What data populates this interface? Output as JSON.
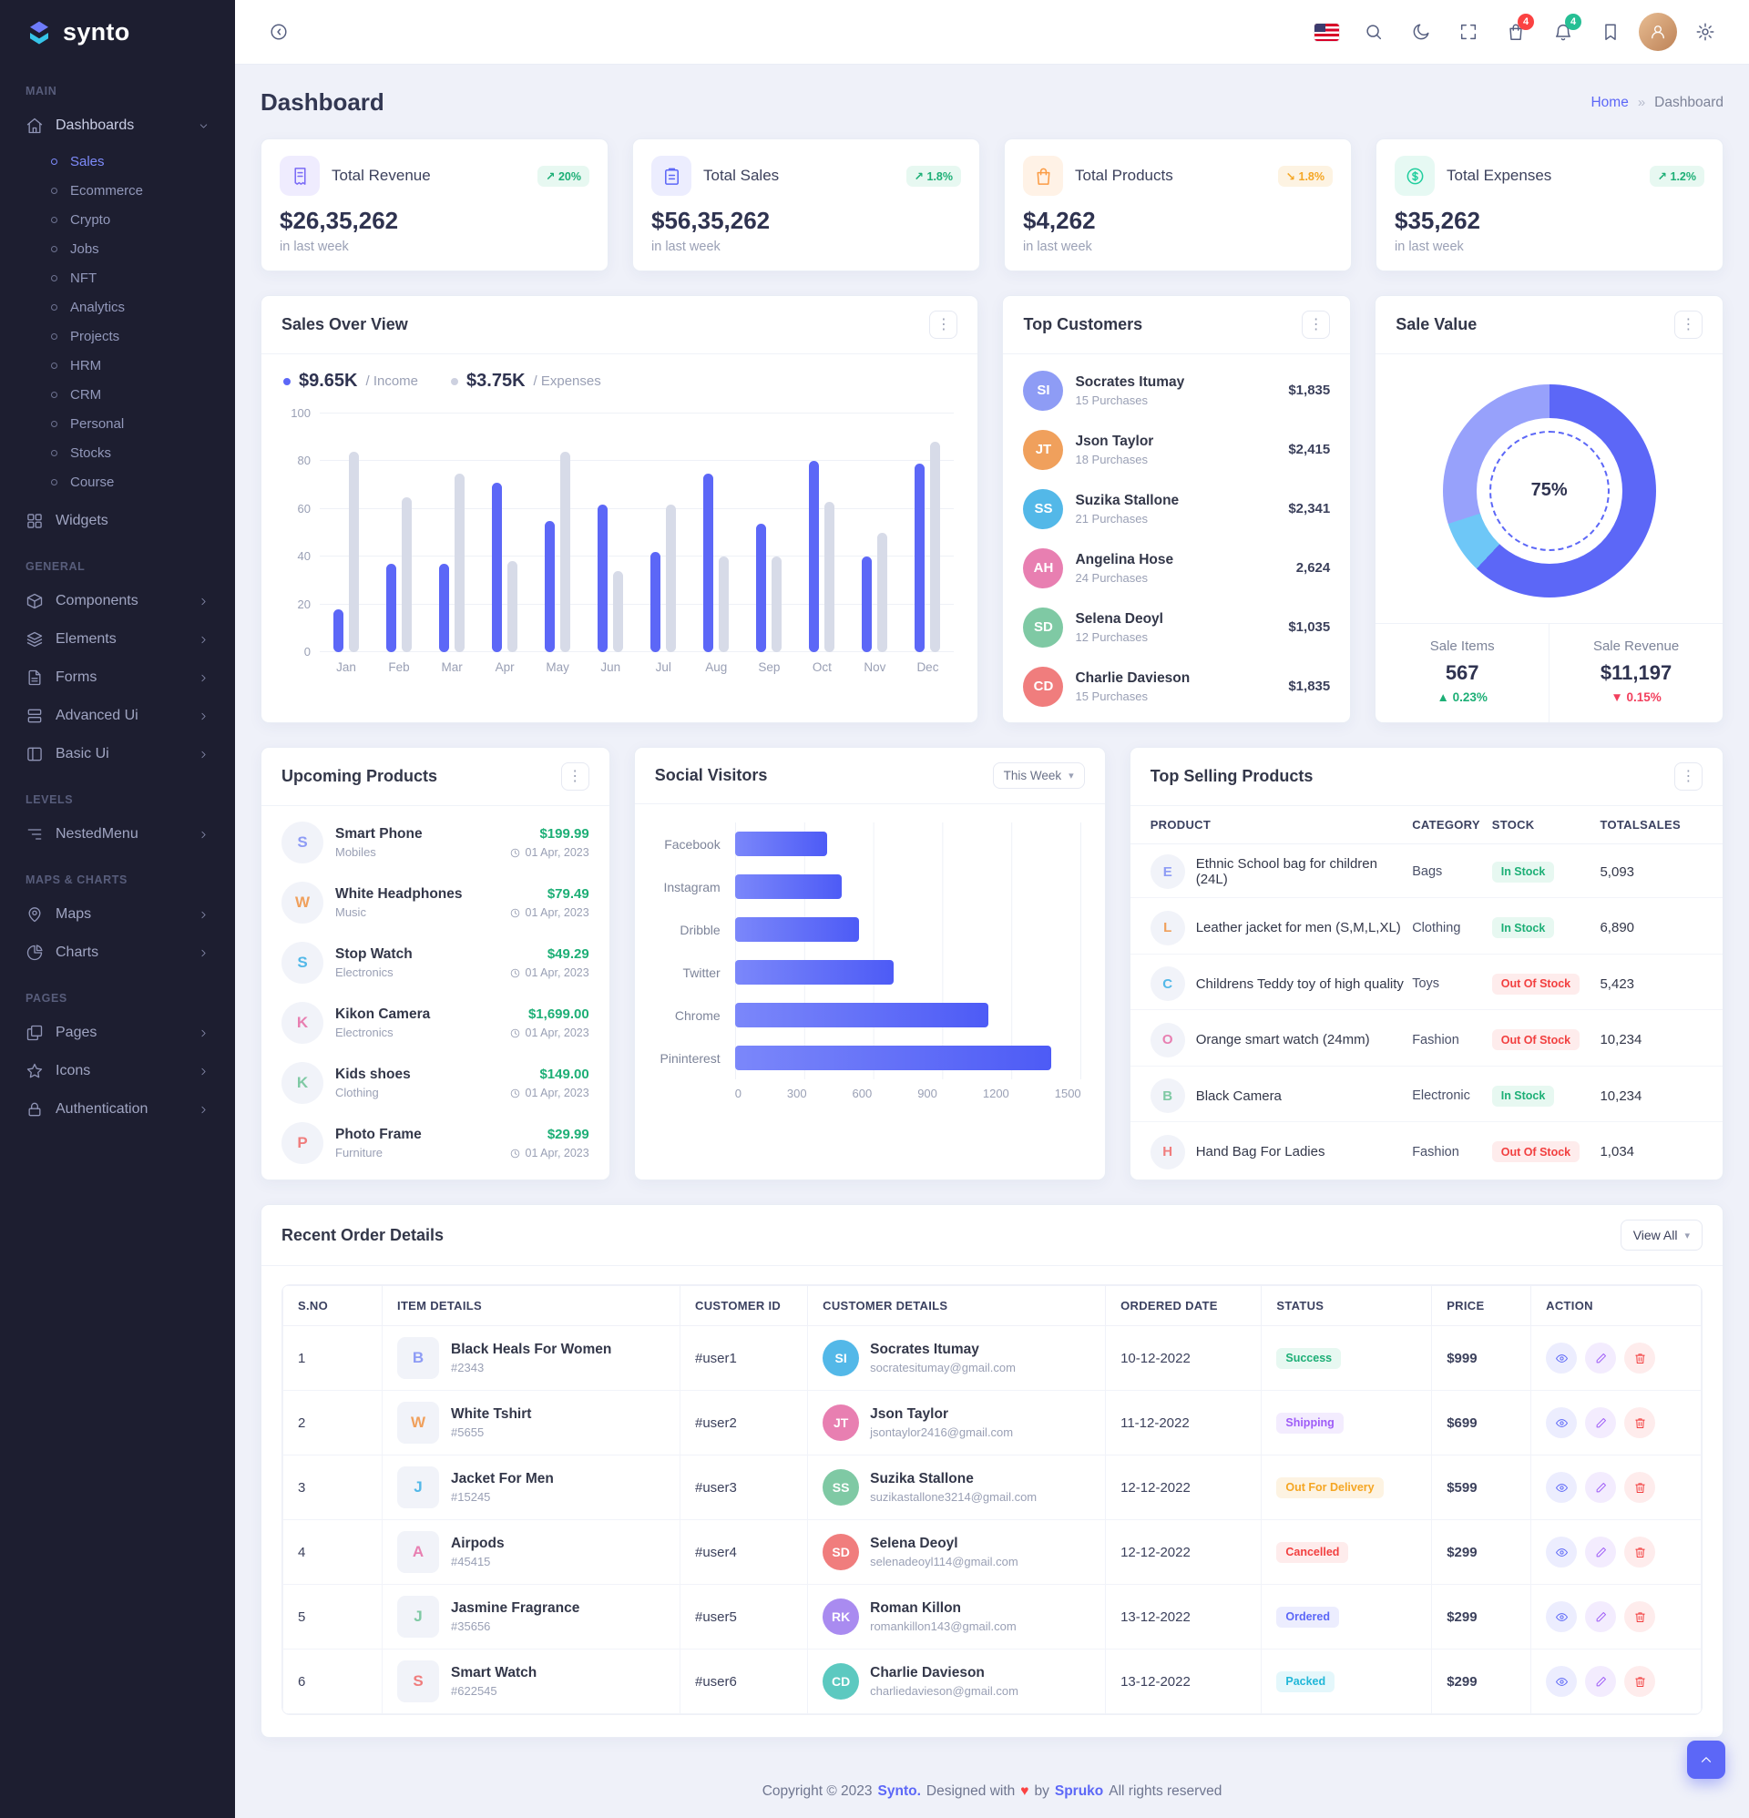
{
  "brand": {
    "name": "synto"
  },
  "colors": {
    "primary": "#5c67f7",
    "primary_bg": "#ecedfe",
    "success": "#1daf76",
    "success_bg": "#e7f8f1",
    "danger": "#f23f3f",
    "danger_bg": "#feecec",
    "warning": "#f5a623",
    "warning_bg": "#fdf3e2",
    "purple": "#9e5cf7",
    "purple_bg": "#f3ecfe",
    "info": "#21b7d8",
    "info_bg": "#e4f7fb",
    "income_bar": "#5c67f7",
    "expenses_bar": "#d7dbe8"
  },
  "icons": {
    "ellipsis": "⋮",
    "caret_down": "▾",
    "breadcrumb_separator": "»",
    "trend_up": "↗",
    "trend_down": "↘",
    "change_up": "▲",
    "change_down": "▼"
  },
  "sidebar": {
    "sections": [
      {
        "label": "MAIN",
        "items": [
          {
            "label": "Dashboards",
            "icon": "home-icon",
            "expanded": true,
            "children": [
              "Sales",
              "Ecommerce",
              "Crypto",
              "Jobs",
              "NFT",
              "Analytics",
              "Projects",
              "HRM",
              "CRM",
              "Personal",
              "Stocks",
              "Course"
            ],
            "active_child": "Sales"
          },
          {
            "label": "Widgets",
            "icon": "widgets-icon"
          }
        ]
      },
      {
        "label": "GENERAL",
        "items": [
          {
            "label": "Components",
            "icon": "components-icon",
            "chevron": true
          },
          {
            "label": "Elements",
            "icon": "elements-icon",
            "chevron": true
          },
          {
            "label": "Forms",
            "icon": "forms-icon",
            "chevron": true
          },
          {
            "label": "Advanced Ui",
            "icon": "advanced-ui-icon",
            "chevron": true
          },
          {
            "label": "Basic Ui",
            "icon": "basic-ui-icon",
            "chevron": true
          }
        ]
      },
      {
        "label": "LEVELS",
        "items": [
          {
            "label": "NestedMenu",
            "icon": "nested-menu-icon",
            "chevron": true
          }
        ]
      },
      {
        "label": "MAPS & CHARTS",
        "items": [
          {
            "label": "Maps",
            "icon": "maps-icon",
            "chevron": true
          },
          {
            "label": "Charts",
            "icon": "charts-icon",
            "chevron": true
          }
        ]
      },
      {
        "label": "PAGES",
        "items": [
          {
            "label": "Pages",
            "icon": "pages-icon",
            "chevron": true
          },
          {
            "label": "Icons",
            "icon": "icons-icon",
            "chevron": true
          },
          {
            "label": "Authentication",
            "icon": "authentication-icon",
            "chevron": true
          }
        ]
      }
    ]
  },
  "header": {
    "cart_badge": "4",
    "notification_badge": "4"
  },
  "page": {
    "title": "Dashboard",
    "breadcrumb_home": "Home",
    "breadcrumb_current": "Dashboard"
  },
  "stats": [
    {
      "title": "Total Revenue",
      "icon": "revenue-icon",
      "value": "$26,35,262",
      "note": "in last week",
      "change": "20%",
      "trend": "up",
      "accent": "#7b6cf6",
      "accent_bg": "#efecfe"
    },
    {
      "title": "Total Sales",
      "icon": "sales-icon",
      "value": "$56,35,262",
      "note": "in last week",
      "change": "1.8%",
      "trend": "up",
      "accent": "#5c67f7",
      "accent_bg": "#ecedfe"
    },
    {
      "title": "Total Products",
      "icon": "products-icon",
      "value": "$4,262",
      "note": "in last week",
      "change": "1.8%",
      "trend": "down",
      "accent": "#fb9c45",
      "accent_bg": "#fff2e6"
    },
    {
      "title": "Total Expenses",
      "icon": "expenses-icon",
      "value": "$35,262",
      "note": "in last week",
      "change": "1.2%",
      "trend": "up",
      "accent": "#21ce9e",
      "accent_bg": "#e6f9f3"
    }
  ],
  "chart_data": [
    {
      "id": "sales_over_view",
      "type": "bar",
      "title": "Sales Over View",
      "categories": [
        "Jan",
        "Feb",
        "Mar",
        "Apr",
        "May",
        "Jun",
        "Jul",
        "Aug",
        "Sep",
        "Oct",
        "Nov",
        "Dec"
      ],
      "series": [
        {
          "name": "Income",
          "total_label": "$9.65K",
          "legend_label": "/ Income",
          "color": "#5c67f7",
          "values": [
            18,
            37,
            37,
            71,
            55,
            62,
            42,
            75,
            54,
            80,
            40,
            79
          ]
        },
        {
          "name": "Expenses",
          "total_label": "$3.75K",
          "legend_label": "/ Expenses",
          "color": "#d7dbe8",
          "values": [
            84,
            65,
            75,
            38,
            84,
            34,
            62,
            40,
            40,
            63,
            50,
            88
          ]
        }
      ],
      "ylim": [
        0,
        100
      ],
      "yticks": [
        0,
        20,
        40,
        60,
        80,
        100
      ],
      "grid": true,
      "legend_position": "top-left"
    },
    {
      "id": "social_visitors",
      "type": "bar-horizontal",
      "title": "Social Visitors",
      "categories": [
        "Facebook",
        "Instagram",
        "Dribble",
        "Twitter",
        "Chrome",
        "Pininterest"
      ],
      "values": [
        400,
        465,
        540,
        690,
        1100,
        1375
      ],
      "xlim": [
        0,
        1500
      ],
      "xticks": [
        0,
        300,
        600,
        900,
        1200,
        1500
      ],
      "grid": true
    },
    {
      "id": "sale_value",
      "type": "donut",
      "title": "Sale Value",
      "center_label": "75%",
      "percent": 75,
      "segments": [
        {
          "label": "primary",
          "value": 62,
          "color": "#5c67f7"
        },
        {
          "label": "sky",
          "value": 8,
          "color": "#6ec7f7"
        },
        {
          "label": "light-indigo",
          "value": 30,
          "color": "#97a1fb"
        }
      ]
    }
  ],
  "top_customers": {
    "title": "Top Customers",
    "items": [
      {
        "name": "Socrates Itumay",
        "purchases": "15 Purchases",
        "amount": "$1,835"
      },
      {
        "name": "Json Taylor",
        "purchases": "18 Purchases",
        "amount": "$2,415"
      },
      {
        "name": "Suzika Stallone",
        "purchases": "21 Purchases",
        "amount": "$2,341"
      },
      {
        "name": "Angelina Hose",
        "purchases": "24 Purchases",
        "amount": "2,624"
      },
      {
        "name": "Selena Deoyl",
        "purchases": "12 Purchases",
        "amount": "$1,035"
      },
      {
        "name": "Charlie Davieson",
        "purchases": "15 Purchases",
        "amount": "$1,835"
      }
    ]
  },
  "sale_value": {
    "stats": [
      {
        "label": "Sale Items",
        "value": "567",
        "change": "0.23%",
        "trend": "up"
      },
      {
        "label": "Sale Revenue",
        "value": "$11,197",
        "change": "0.15%",
        "trend": "down"
      }
    ]
  },
  "upcoming_products": {
    "title": "Upcoming Products",
    "items": [
      {
        "name": "Smart Phone",
        "category": "Mobiles",
        "price": "$199.99",
        "date": "01 Apr, 2023"
      },
      {
        "name": "White Headphones",
        "category": "Music",
        "price": "$79.49",
        "date": "01 Apr, 2023"
      },
      {
        "name": "Stop Watch",
        "category": "Electronics",
        "price": "$49.29",
        "date": "01 Apr, 2023"
      },
      {
        "name": "Kikon Camera",
        "category": "Electronics",
        "price": "$1,699.00",
        "date": "01 Apr, 2023"
      },
      {
        "name": "Kids shoes",
        "category": "Clothing",
        "price": "$149.00",
        "date": "01 Apr, 2023"
      },
      {
        "name": "Photo Frame",
        "category": "Furniture",
        "price": "$29.99",
        "date": "01 Apr, 2023"
      }
    ]
  },
  "social": {
    "period_label": "This Week"
  },
  "top_selling": {
    "title": "Top Selling Products",
    "columns": [
      "PRODUCT",
      "CATEGORY",
      "STOCK",
      "TOTALSALES"
    ],
    "rows": [
      {
        "product": "Ethnic School bag for children (24L)",
        "category": "Bags",
        "stock": "In Stock",
        "total_sales": "5,093"
      },
      {
        "product": "Leather jacket for men (S,M,L,XL)",
        "category": "Clothing",
        "stock": "In Stock",
        "total_sales": "6,890"
      },
      {
        "product": "Childrens Teddy toy of high quality",
        "category": "Toys",
        "stock": "Out Of Stock",
        "total_sales": "5,423"
      },
      {
        "product": "Orange smart watch (24mm)",
        "category": "Fashion",
        "stock": "Out Of Stock",
        "total_sales": "10,234"
      },
      {
        "product": "Black Camera",
        "category": "Electronic",
        "stock": "In Stock",
        "total_sales": "10,234"
      },
      {
        "product": "Hand Bag For Ladies",
        "category": "Fashion",
        "stock": "Out Of Stock",
        "total_sales": "1,034"
      }
    ]
  },
  "orders": {
    "title": "Recent Order Details",
    "view_all_label": "View All",
    "columns": [
      "S.NO",
      "ITEM DETAILS",
      "CUSTOMER ID",
      "CUSTOMER DETAILS",
      "ORDERED DATE",
      "STATUS",
      "PRICE",
      "ACTION"
    ],
    "status_styles": {
      "Success": "success",
      "Shipping": "purple",
      "Out For Delivery": "warning",
      "Cancelled": "danger",
      "Ordered": "primary",
      "Packed": "info"
    },
    "rows": [
      {
        "sno": "1",
        "item": "Black Heals For Women",
        "item_id": "#2343",
        "customer_id": "#user1",
        "customer": "Socrates Itumay",
        "email": "socratesitumay@gmail.com",
        "date": "10-12-2022",
        "status": "Success",
        "price": "$999"
      },
      {
        "sno": "2",
        "item": "White Tshirt",
        "item_id": "#5655",
        "customer_id": "#user2",
        "customer": "Json Taylor",
        "email": "jsontaylor2416@gmail.com",
        "date": "11-12-2022",
        "status": "Shipping",
        "price": "$699"
      },
      {
        "sno": "3",
        "item": "Jacket For Men",
        "item_id": "#15245",
        "customer_id": "#user3",
        "customer": "Suzika Stallone",
        "email": "suzikastallone3214@gmail.com",
        "date": "12-12-2022",
        "status": "Out For Delivery",
        "price": "$599"
      },
      {
        "sno": "4",
        "item": "Airpods",
        "item_id": "#45415",
        "customer_id": "#user4",
        "customer": "Selena Deoyl",
        "email": "selenadeoyl114@gmail.com",
        "date": "12-12-2022",
        "status": "Cancelled",
        "price": "$299"
      },
      {
        "sno": "5",
        "item": "Jasmine Fragrance",
        "item_id": "#35656",
        "customer_id": "#user5",
        "customer": "Roman Killon",
        "email": "romankillon143@gmail.com",
        "date": "13-12-2022",
        "status": "Ordered",
        "price": "$299"
      },
      {
        "sno": "6",
        "item": "Smart Watch",
        "item_id": "#622545",
        "customer_id": "#user6",
        "customer": "Charlie Davieson",
        "email": "charliedavieson@gmail.com",
        "date": "13-12-2022",
        "status": "Packed",
        "price": "$299"
      }
    ]
  },
  "footer": {
    "prefix": "Copyright © 2023",
    "brand": "Synto.",
    "middle": "Designed with",
    "heart": "♥",
    "by": "by",
    "author": "Spruko",
    "suffix": "All rights reserved"
  },
  "avatar_palette": [
    "#8e9cf5",
    "#f0a05c",
    "#53b8e8",
    "#e87fb1",
    "#7fc9a4",
    "#f07d7d",
    "#a98bf0",
    "#5cc9c0"
  ]
}
